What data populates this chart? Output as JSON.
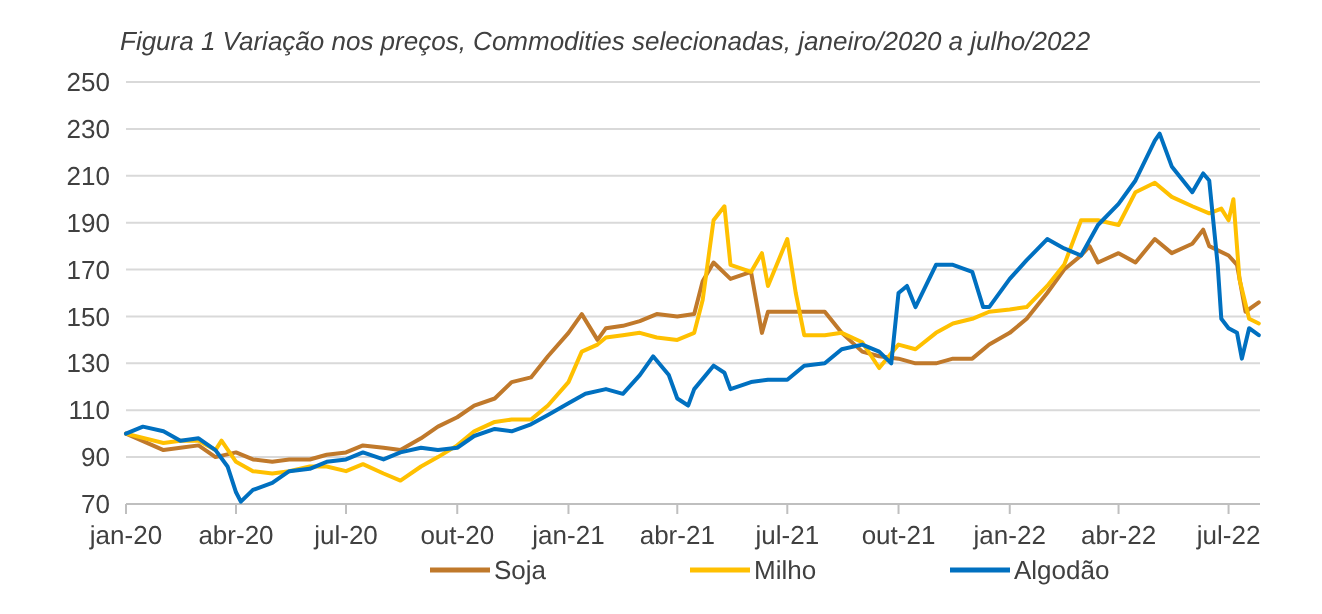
{
  "chart_data": {
    "type": "line",
    "title": "Figura 1 Variação nos preços, Commodities selecionadas, janeiro/2020 a julho/2022",
    "xlim": [
      "2020-01-01",
      "2022-07-27"
    ],
    "ylim": [
      70,
      250
    ],
    "yticks": [
      70,
      90,
      110,
      130,
      150,
      170,
      190,
      210,
      230,
      250
    ],
    "xticks": [
      {
        "value": "2020-01-01",
        "label": "jan-20"
      },
      {
        "value": "2020-04-01",
        "label": "abr-20"
      },
      {
        "value": "2020-07-01",
        "label": "jul-20"
      },
      {
        "value": "2020-10-01",
        "label": "out-20"
      },
      {
        "value": "2021-01-01",
        "label": "jan-21"
      },
      {
        "value": "2021-04-01",
        "label": "abr-21"
      },
      {
        "value": "2021-07-01",
        "label": "jul-21"
      },
      {
        "value": "2021-10-01",
        "label": "out-21"
      },
      {
        "value": "2022-01-01",
        "label": "jan-22"
      },
      {
        "value": "2022-04-01",
        "label": "abr-22"
      },
      {
        "value": "2022-07-01",
        "label": "jul-22"
      }
    ],
    "grid": "y",
    "legend": "bottom",
    "line_style": "solid",
    "marker": "none",
    "series": [
      {
        "name": "Soja",
        "color": "#c0792b",
        "x": [
          "2020-01-01",
          "2020-02-01",
          "2020-02-15",
          "2020-03-01",
          "2020-03-15",
          "2020-04-01",
          "2020-04-15",
          "2020-05-01",
          "2020-05-15",
          "2020-06-01",
          "2020-06-15",
          "2020-07-01",
          "2020-07-15",
          "2020-08-01",
          "2020-08-15",
          "2020-09-01",
          "2020-09-15",
          "2020-10-01",
          "2020-10-15",
          "2020-11-01",
          "2020-11-15",
          "2020-12-01",
          "2020-12-15",
          "2021-01-01",
          "2021-01-12",
          "2021-01-25",
          "2021-02-01",
          "2021-02-15",
          "2021-03-01",
          "2021-03-15",
          "2021-04-01",
          "2021-04-15",
          "2021-04-22",
          "2021-05-01",
          "2021-05-15",
          "2021-06-01",
          "2021-06-10",
          "2021-06-15",
          "2021-07-01",
          "2021-07-15",
          "2021-08-01",
          "2021-08-15",
          "2021-09-01",
          "2021-09-15",
          "2021-10-01",
          "2021-10-15",
          "2021-11-01",
          "2021-11-15",
          "2021-12-01",
          "2021-12-15",
          "2022-01-01",
          "2022-01-15",
          "2022-02-01",
          "2022-02-15",
          "2022-03-01",
          "2022-03-08",
          "2022-03-15",
          "2022-04-01",
          "2022-04-15",
          "2022-05-01",
          "2022-05-15",
          "2022-06-01",
          "2022-06-10",
          "2022-06-15",
          "2022-07-01",
          "2022-07-08",
          "2022-07-15",
          "2022-07-26"
        ],
        "values": [
          100,
          93,
          94,
          95,
          90,
          92,
          89,
          88,
          89,
          89,
          91,
          92,
          95,
          94,
          93,
          98,
          103,
          107,
          112,
          115,
          122,
          124,
          133,
          143,
          151,
          140,
          145,
          146,
          148,
          151,
          150,
          151,
          165,
          173,
          166,
          169,
          143,
          152,
          152,
          152,
          152,
          143,
          135,
          133,
          132,
          130,
          130,
          132,
          132,
          138,
          143,
          149,
          160,
          170,
          176,
          180,
          173,
          177,
          173,
          183,
          177,
          181,
          187,
          180,
          176,
          172,
          152,
          156
        ]
      },
      {
        "name": "Milho",
        "color": "#ffc000",
        "x": [
          "2020-01-01",
          "2020-02-01",
          "2020-02-15",
          "2020-03-01",
          "2020-03-15",
          "2020-03-20",
          "2020-04-01",
          "2020-04-15",
          "2020-05-01",
          "2020-05-15",
          "2020-06-01",
          "2020-06-15",
          "2020-07-01",
          "2020-07-15",
          "2020-08-01",
          "2020-08-15",
          "2020-09-01",
          "2020-09-15",
          "2020-10-01",
          "2020-10-15",
          "2020-11-01",
          "2020-11-15",
          "2020-12-01",
          "2020-12-15",
          "2021-01-01",
          "2021-01-12",
          "2021-01-25",
          "2021-02-01",
          "2021-02-15",
          "2021-03-01",
          "2021-03-15",
          "2021-04-01",
          "2021-04-15",
          "2021-04-22",
          "2021-05-01",
          "2021-05-10",
          "2021-05-15",
          "2021-06-01",
          "2021-06-10",
          "2021-06-15",
          "2021-07-01",
          "2021-07-08",
          "2021-07-15",
          "2021-08-01",
          "2021-08-15",
          "2021-09-01",
          "2021-09-15",
          "2021-10-01",
          "2021-10-15",
          "2021-11-01",
          "2021-11-15",
          "2021-12-01",
          "2021-12-15",
          "2022-01-01",
          "2022-01-15",
          "2022-02-01",
          "2022-02-15",
          "2022-03-01",
          "2022-03-15",
          "2022-04-01",
          "2022-04-15",
          "2022-05-01",
          "2022-05-15",
          "2022-06-01",
          "2022-06-15",
          "2022-06-25",
          "2022-07-01",
          "2022-07-05",
          "2022-07-10",
          "2022-07-18",
          "2022-07-26"
        ],
        "values": [
          100,
          96,
          97,
          97,
          93,
          97,
          88,
          84,
          83,
          84,
          86,
          86,
          84,
          87,
          83,
          80,
          86,
          90,
          95,
          101,
          105,
          106,
          106,
          112,
          122,
          135,
          138,
          141,
          142,
          143,
          141,
          140,
          143,
          157,
          191,
          197,
          172,
          169,
          177,
          163,
          183,
          160,
          142,
          142,
          143,
          139,
          128,
          138,
          136,
          143,
          147,
          149,
          152,
          153,
          154,
          163,
          172,
          191,
          191,
          189,
          203,
          207,
          201,
          197,
          194,
          196,
          191,
          200,
          166,
          149,
          147
        ]
      },
      {
        "name": "Algodão",
        "color": "#0070c0",
        "x": [
          "2020-01-01",
          "2020-01-15",
          "2020-02-01",
          "2020-02-15",
          "2020-03-01",
          "2020-03-15",
          "2020-03-25",
          "2020-04-01",
          "2020-04-05",
          "2020-04-15",
          "2020-05-01",
          "2020-05-15",
          "2020-06-01",
          "2020-06-15",
          "2020-07-01",
          "2020-07-15",
          "2020-08-01",
          "2020-08-15",
          "2020-09-01",
          "2020-09-15",
          "2020-10-01",
          "2020-10-15",
          "2020-11-01",
          "2020-11-15",
          "2020-12-01",
          "2020-12-15",
          "2021-01-01",
          "2021-01-15",
          "2021-02-01",
          "2021-02-15",
          "2021-03-01",
          "2021-03-12",
          "2021-03-25",
          "2021-04-01",
          "2021-04-10",
          "2021-04-15",
          "2021-05-01",
          "2021-05-10",
          "2021-05-15",
          "2021-06-01",
          "2021-06-15",
          "2021-07-01",
          "2021-07-15",
          "2021-08-01",
          "2021-08-15",
          "2021-09-01",
          "2021-09-15",
          "2021-09-25",
          "2021-10-01",
          "2021-10-08",
          "2021-10-15",
          "2021-11-01",
          "2021-11-15",
          "2021-12-01",
          "2021-12-10",
          "2021-12-15",
          "2022-01-01",
          "2022-01-15",
          "2022-02-01",
          "2022-02-15",
          "2022-03-01",
          "2022-03-15",
          "2022-04-01",
          "2022-04-15",
          "2022-05-01",
          "2022-05-05",
          "2022-05-15",
          "2022-06-01",
          "2022-06-10",
          "2022-06-15",
          "2022-06-22",
          "2022-06-25",
          "2022-07-01",
          "2022-07-08",
          "2022-07-12",
          "2022-07-18",
          "2022-07-26"
        ],
        "values": [
          100,
          103,
          101,
          97,
          98,
          93,
          86,
          75,
          71,
          76,
          79,
          84,
          85,
          88,
          89,
          92,
          89,
          92,
          94,
          93,
          94,
          99,
          102,
          101,
          104,
          108,
          113,
          117,
          119,
          117,
          125,
          133,
          125,
          115,
          112,
          119,
          129,
          126,
          119,
          122,
          123,
          123,
          129,
          130,
          136,
          138,
          135,
          130,
          160,
          163,
          154,
          172,
          172,
          169,
          154,
          154,
          166,
          174,
          183,
          179,
          176,
          189,
          198,
          208,
          225,
          228,
          214,
          203,
          211,
          208,
          172,
          149,
          145,
          143,
          132,
          145,
          142
        ]
      }
    ]
  }
}
